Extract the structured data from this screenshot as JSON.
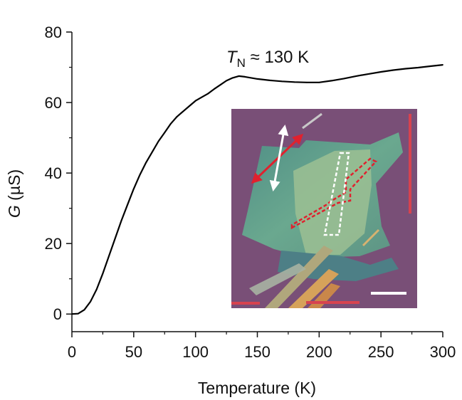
{
  "chart_data": {
    "type": "line",
    "title": "",
    "xlabel": "Temperature (K)",
    "ylabel_symbol": "G",
    "ylabel_unit": " (µS)",
    "xlim": [
      0,
      300
    ],
    "ylim": [
      -5,
      80
    ],
    "xticks": [
      0,
      50,
      100,
      150,
      200,
      250,
      300
    ],
    "yticks": [
      0,
      20,
      40,
      60,
      80
    ],
    "grid": false,
    "annotation": {
      "symbol": "T",
      "subscript": "N",
      "text": " ≈ 130 K",
      "x": 130
    },
    "series": [
      {
        "x": [
          0,
          5,
          10,
          15,
          20,
          25,
          30,
          35,
          40,
          45,
          50,
          55,
          60,
          65,
          70,
          75,
          80,
          85,
          90,
          95,
          100,
          105,
          110,
          115,
          120,
          125,
          130,
          135,
          140,
          145,
          150,
          160,
          170,
          180,
          190,
          200,
          210,
          220,
          230,
          240,
          250,
          260,
          270,
          280,
          290,
          300
        ],
        "y": [
          0,
          0.1,
          1.2,
          3.5,
          7,
          11.5,
          16.5,
          21.5,
          26.5,
          31,
          35.5,
          39.5,
          43,
          46,
          49,
          51.5,
          54,
          56,
          57.5,
          59,
          60.5,
          61.5,
          62.5,
          63.8,
          65,
          66.2,
          67,
          67.5,
          67.3,
          67,
          66.7,
          66.3,
          66,
          65.8,
          65.7,
          65.7,
          66.2,
          66.8,
          67.5,
          68.1,
          68.7,
          69.2,
          69.6,
          69.9,
          70.3,
          70.7
        ],
        "color": "#000000"
      }
    ]
  },
  "inset": {
    "palette": {
      "background": "#7f4a74",
      "flake": "#5f9b8a",
      "flake_light": "#93b890",
      "contact": "#c0894e",
      "red_marks": "#e0212e",
      "white_marks": "#ffffff"
    }
  }
}
